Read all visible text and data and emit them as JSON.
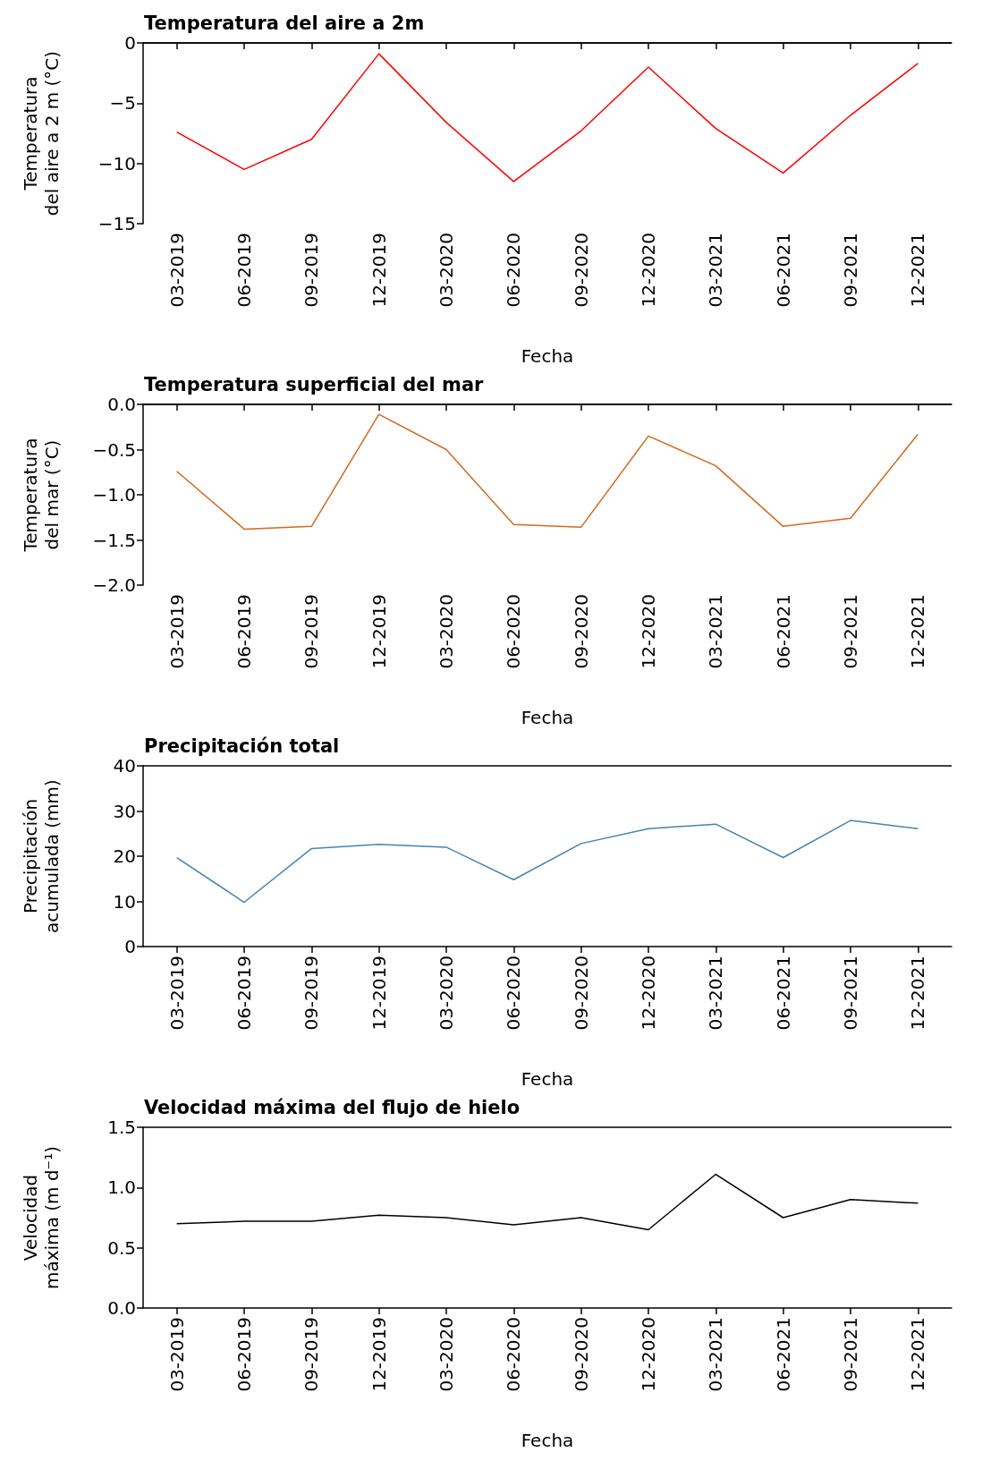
{
  "chart_data": [
    {
      "type": "line",
      "title": "Temperatura del aire a 2m",
      "xlabel": "Fecha",
      "ylabel": "Temperatura\ndel aire a 2 m (°C)",
      "marker": "none",
      "categories": [
        "03-2019",
        "06-2019",
        "09-2019",
        "12-2019",
        "03-2020",
        "06-2020",
        "09-2020",
        "12-2020",
        "03-2021",
        "06-2021",
        "09-2021",
        "12-2021"
      ],
      "series": [
        {
          "color": "#ff0000",
          "values": [
            -7.4,
            -10.5,
            -8.0,
            -0.9,
            -6.6,
            -11.5,
            -7.3,
            -2.0,
            -7.1,
            -10.8,
            -6.0,
            -1.7
          ]
        }
      ],
      "ylim": [
        -15,
        0
      ],
      "yticks": [
        {
          "value": -15,
          "label": "−15"
        },
        {
          "value": -10,
          "label": "−10"
        },
        {
          "value": -5,
          "label": "−5"
        },
        0
      ]
    },
    {
      "type": "line",
      "title": "Temperatura superficial del mar",
      "xlabel": "Fecha",
      "ylabel": "Temperatura\ndel mar (°C)",
      "marker": "none",
      "categories": [
        "03-2019",
        "06-2019",
        "09-2019",
        "12-2019",
        "03-2020",
        "06-2020",
        "09-2020",
        "12-2020",
        "03-2021",
        "06-2021",
        "09-2021",
        "12-2021"
      ],
      "series": [
        {
          "color": "#d2691e",
          "values": [
            -0.74,
            -1.38,
            -1.35,
            -0.11,
            -0.5,
            -1.33,
            -1.36,
            -0.35,
            -0.68,
            -1.35,
            -1.26,
            -0.33
          ]
        }
      ],
      "ylim": [
        -2,
        0
      ],
      "yticks": [
        {
          "value": -2,
          "label": "−2.0"
        },
        {
          "value": -1.5,
          "label": "−1.5"
        },
        {
          "value": -1,
          "label": "−1.0"
        },
        {
          "value": -0.5,
          "label": "−0.5"
        },
        {
          "value": 0,
          "label": "0.0"
        }
      ]
    },
    {
      "type": "line",
      "title": "Precipitación total",
      "xlabel": "Fecha",
      "ylabel": "Precipitación\nacumulada (mm)",
      "marker": "none",
      "categories": [
        "03-2019",
        "06-2019",
        "09-2019",
        "12-2019",
        "03-2020",
        "06-2020",
        "09-2020",
        "12-2020",
        "03-2021",
        "06-2021",
        "09-2021",
        "12-2021"
      ],
      "series": [
        {
          "color": "#4682b4",
          "values": [
            19.7,
            9.8,
            21.7,
            22.6,
            22.0,
            14.8,
            22.8,
            26.1,
            27.1,
            19.7,
            27.9,
            26.1
          ]
        }
      ],
      "ylim": [
        0,
        40
      ],
      "yticks": [
        0,
        10,
        20,
        30,
        40
      ]
    },
    {
      "type": "line",
      "title": "Velocidad máxima del flujo de hielo",
      "xlabel": "Fecha",
      "ylabel": "Velocidad\nmáxima (m d⁻¹)",
      "marker": "none",
      "categories": [
        "03-2019",
        "06-2019",
        "09-2019",
        "12-2019",
        "03-2020",
        "06-2020",
        "09-2020",
        "12-2020",
        "03-2021",
        "06-2021",
        "09-2021",
        "12-2021"
      ],
      "series": [
        {
          "color": "#000000",
          "values": [
            0.7,
            0.72,
            0.72,
            0.77,
            0.75,
            0.69,
            0.75,
            0.65,
            1.11,
            0.75,
            0.9,
            0.87
          ]
        }
      ],
      "ylim": [
        0,
        1.5
      ],
      "yticks": [
        {
          "value": 0,
          "label": "0.0"
        },
        {
          "value": 0.5,
          "label": "0.5"
        },
        {
          "value": 1,
          "label": "1.0"
        },
        {
          "value": 1.5,
          "label": "1.5"
        }
      ]
    }
  ]
}
